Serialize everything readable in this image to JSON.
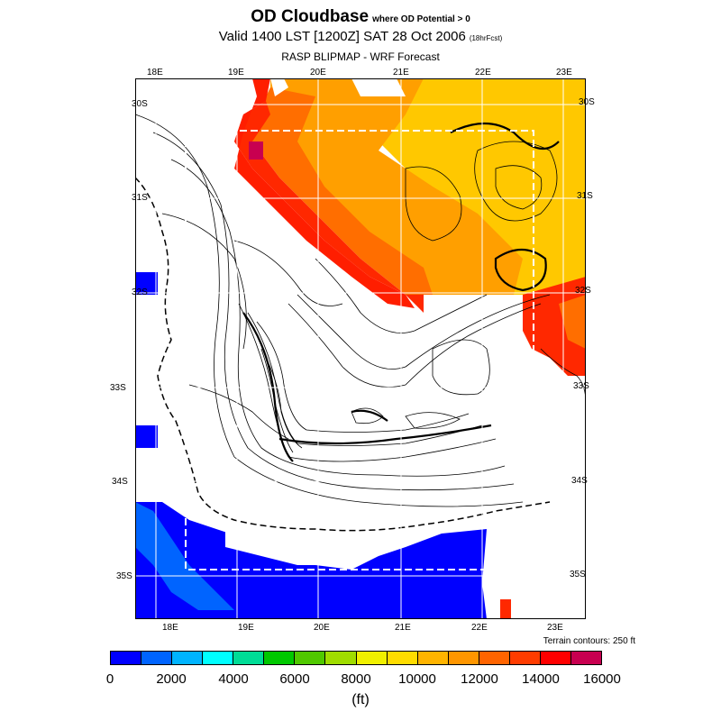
{
  "header": {
    "title": "OD Cloudbase",
    "title_suffix": "where OD Potential > 0",
    "subtitle": "Valid 1400 LST [1200Z] SAT 28 Oct 2006",
    "subtitle_small": "(18hrFcst)",
    "source": "RASP BLIPMAP - WRF Forecast"
  },
  "map": {
    "lon_labels_top": [
      "18E",
      "19E",
      "20E",
      "21E",
      "22E",
      "23E"
    ],
    "lon_labels_bottom": [
      "18E",
      "19E",
      "20E",
      "21E",
      "22E",
      "23E"
    ],
    "lat_labels_left": [
      "30S",
      "31S",
      "32S",
      "33S",
      "34S",
      "35S"
    ],
    "lat_labels_right": [
      "30S",
      "31S",
      "32S",
      "33S",
      "34S",
      "35S"
    ],
    "terrain_note": "Terrain contours: 250 ft",
    "colors": {
      "dark_blue": "#0000ff",
      "mid_blue": "#0064ff",
      "orange_yellow": "#ffc800",
      "orange": "#ff9600",
      "dark_orange": "#ff6400",
      "red": "#ff2800",
      "crimson": "#c80050"
    }
  },
  "legend": {
    "labels": [
      "0",
      "2000",
      "4000",
      "6000",
      "8000",
      "10000",
      "12000",
      "14000",
      "16000"
    ],
    "colors": [
      "#0000ff",
      "#0064ff",
      "#00b4ff",
      "#00ffff",
      "#00dc96",
      "#00c800",
      "#50c800",
      "#a0dc00",
      "#f0f000",
      "#ffdc00",
      "#ffb400",
      "#ff9600",
      "#ff6400",
      "#ff3c00",
      "#ff0000",
      "#c80050"
    ],
    "units": "(ft)"
  }
}
